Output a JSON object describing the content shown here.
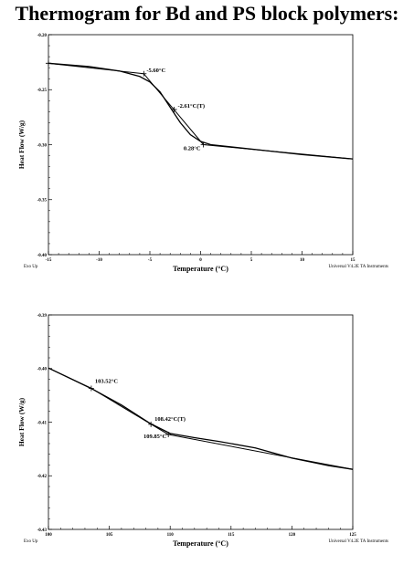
{
  "title": "Thermogram for Bd and PS block polymers:",
  "chart_data": [
    {
      "type": "line",
      "xlabel": "Temperature (°C)",
      "ylabel": "Heat Flow (W/g)",
      "xlim": [
        -15,
        15
      ],
      "ylim": [
        -0.4,
        -0.2
      ],
      "xticks": [
        -15,
        -10,
        -5,
        0,
        5,
        10,
        15
      ],
      "xtick_labels": [
        "-15",
        "-10",
        "-5",
        "0",
        "5",
        "10",
        "15"
      ],
      "yticks": [
        -0.2,
        -0.25,
        -0.3,
        -0.35,
        -0.4
      ],
      "ytick_labels": [
        "-0.20",
        "-0.25",
        "-0.30",
        "-0.35",
        "-0.40"
      ],
      "footer_left": "Exo Up",
      "footer_right": "Universal V4.2E TA Instruments",
      "grid": false,
      "series": [
        {
          "points": [
            [
              -15,
              -0.226
            ],
            [
              -11,
              -0.229
            ],
            [
              -8,
              -0.233
            ],
            [
              -6,
              -0.238
            ],
            [
              -5,
              -0.243
            ],
            [
              -4,
              -0.252
            ],
            [
              -3,
              -0.266
            ],
            [
              -2,
              -0.28
            ],
            [
              -1,
              -0.291
            ],
            [
              0,
              -0.297
            ],
            [
              1,
              -0.3
            ],
            [
              3,
              -0.302
            ],
            [
              6,
              -0.305
            ],
            [
              10,
              -0.309
            ],
            [
              15,
              -0.313
            ]
          ]
        }
      ],
      "construction_lines": [
        [
          [
            -15,
            -0.226
          ],
          [
            -5.6,
            -0.2355
          ]
        ],
        [
          [
            -5.6,
            -0.2355
          ],
          [
            0.28,
            -0.3
          ]
        ],
        [
          [
            0.28,
            -0.3
          ],
          [
            15,
            -0.313
          ]
        ]
      ],
      "markers": [
        [
          -15,
          -0.226
        ],
        [
          -5.6,
          -0.2355
        ],
        [
          -2.61,
          -0.268
        ],
        [
          0.28,
          -0.3
        ]
      ],
      "annotations": [
        {
          "text": "-5.60°C",
          "x": -5.6,
          "y": -0.2355
        },
        {
          "text": "-2.61°C(T)",
          "x": -2.61,
          "y": -0.268
        },
        {
          "text": "0.28°C",
          "x": 0.28,
          "y": -0.3
        }
      ]
    },
    {
      "type": "line",
      "xlabel": "Temperature (°C)",
      "ylabel": "Heat Flow (W/g)",
      "xlim": [
        100,
        125
      ],
      "ylim": [
        -0.43,
        -0.39
      ],
      "xticks": [
        100,
        105,
        110,
        115,
        120,
        125
      ],
      "xtick_labels": [
        "100",
        "105",
        "110",
        "115",
        "120",
        "125"
      ],
      "yticks": [
        -0.39,
        -0.4,
        -0.41,
        -0.42,
        -0.43
      ],
      "ytick_labels": [
        "-0.39",
        "-0.40",
        "-0.41",
        "-0.42",
        "-0.43"
      ],
      "footer_left": "Exo Up",
      "footer_right": "Universal V4.2E TA Instruments",
      "grid": false,
      "series": [
        {
          "points": [
            [
              100,
              -0.3999
            ],
            [
              103.5,
              -0.4037
            ],
            [
              106,
              -0.4068
            ],
            [
              108.4,
              -0.4103
            ],
            [
              110,
              -0.4121
            ],
            [
              112,
              -0.4129
            ],
            [
              114,
              -0.4136
            ],
            [
              117,
              -0.4148
            ],
            [
              120,
              -0.4167
            ],
            [
              123,
              -0.4181
            ],
            [
              125,
              -0.4188
            ]
          ]
        }
      ],
      "construction_lines": [
        [
          [
            100,
            -0.3999
          ],
          [
            103.52,
            -0.4037
          ]
        ],
        [
          [
            103.52,
            -0.4037
          ],
          [
            109.85,
            -0.4123
          ]
        ],
        [
          [
            109.85,
            -0.4123
          ],
          [
            125,
            -0.4188
          ]
        ]
      ],
      "markers": [
        [
          103.52,
          -0.4037
        ],
        [
          108.42,
          -0.4104
        ],
        [
          109.85,
          -0.4123
        ]
      ],
      "annotations": [
        {
          "text": "103.52°C",
          "x": 103.52,
          "y": -0.4037
        },
        {
          "text": "108.42°C(T)",
          "x": 108.42,
          "y": -0.4104
        },
        {
          "text": "109.85°C",
          "x": 109.85,
          "y": -0.4123
        }
      ]
    }
  ]
}
